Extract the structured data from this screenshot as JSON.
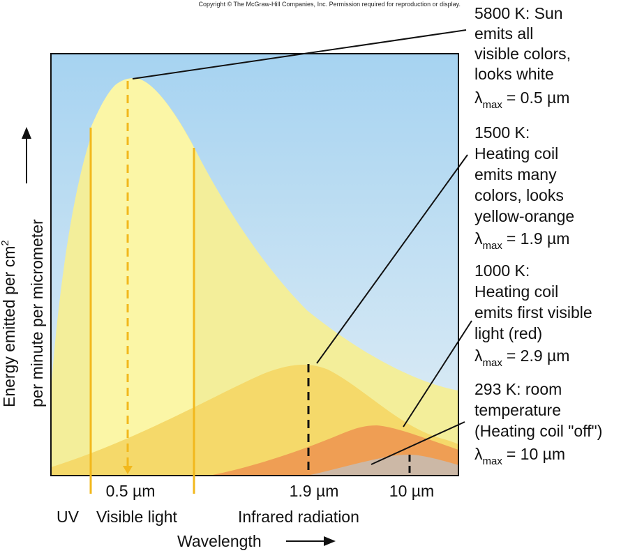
{
  "copyright": "Copyright © The McGraw-Hill Companies, Inc. Permission required for reproduction or display.",
  "axes": {
    "y_label_line1": "Energy emitted per cm",
    "y_label_sup": "2",
    "y_label_line2": "per minute per micrometer",
    "x_label": "Wavelength"
  },
  "ticks": {
    "t_05": "0.5 µm",
    "t_19": "1.9 µm",
    "t_10": "10 µm"
  },
  "regions": {
    "uv": "UV",
    "visible": "Visible light",
    "infrared": "Infrared radiation"
  },
  "annotations": {
    "sun": {
      "lines": [
        "5800 K: Sun",
        "emits all",
        "visible colors,",
        "looks white"
      ],
      "lambda_value": "= 0.5 µm"
    },
    "k1500": {
      "lines": [
        "1500 K:",
        "Heating coil",
        "emits many",
        "colors, looks",
        "yellow-orange"
      ],
      "lambda_value": "= 1.9 µm"
    },
    "k1000": {
      "lines": [
        "1000 K:",
        "Heating coil",
        "emits first visible",
        "light (red)"
      ],
      "lambda_value": "= 2.9 µm"
    },
    "k293": {
      "lines": [
        "293 K: room",
        "temperature",
        "(Heating coil \"off\")"
      ],
      "lambda_value": "= 10 µm"
    }
  },
  "lambda_symbol": "λ",
  "lambda_sub": "max",
  "colors": {
    "sky_top": "#a6d3f1",
    "sky_bottom": "#dcebf5",
    "curve_5800": "#f3ee9a",
    "visible_band": "#fbf6a6",
    "curve_1500": "#f5d96a",
    "curve_1000": "#ef9e54",
    "curve_293": "#ccb8a6",
    "band_line": "#f2b81c"
  }
}
